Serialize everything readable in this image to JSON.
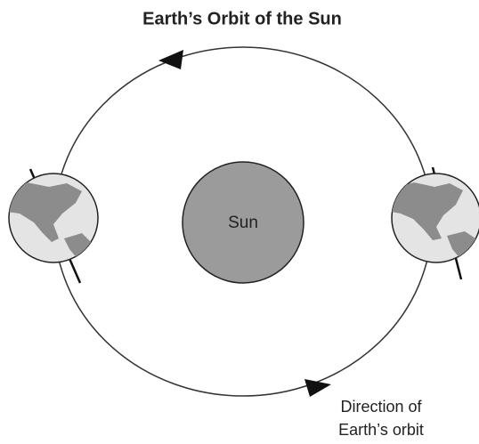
{
  "title": "Earth’s Orbit of the Sun",
  "labels": {
    "sun": "Sun",
    "direction": [
      "Direction of",
      "Earth’s orbit"
    ]
  }
}
